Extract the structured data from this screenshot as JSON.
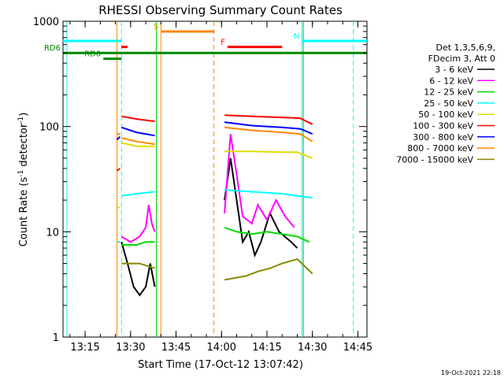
{
  "chart_data": {
    "type": "line",
    "title": "RHESSI Observing Summary Count Rates",
    "xlabel": "Start Time (17-Oct-12 13:07:42)",
    "ylabel_main": "Count Rate (s",
    "ylabel_sup1": "-1",
    "ylabel_mid": " detector",
    "ylabel_sup2": "-1",
    "ylabel_end": ")",
    "yscale": "log",
    "ylim": [
      1,
      1000
    ],
    "xlim_minutes": [
      "13:07:42",
      "14:48:00"
    ],
    "x_ticks": [
      {
        "minute": "13:15",
        "label": "13:15"
      },
      {
        "minute": "13:30",
        "label": "13:30"
      },
      {
        "minute": "13:45",
        "label": "13:45"
      },
      {
        "minute": "14:00",
        "label": "14:00"
      },
      {
        "minute": "14:15",
        "label": "14:15"
      },
      {
        "minute": "14:30",
        "label": "14:30"
      },
      {
        "minute": "14:45",
        "label": "14:45"
      }
    ],
    "y_ticks": [
      {
        "value": 1,
        "label": "1"
      },
      {
        "value": 10,
        "label": "10"
      },
      {
        "value": 100,
        "label": "100"
      },
      {
        "value": 1000,
        "label": "1000"
      }
    ],
    "legend_header": [
      "Det 1,3,5,6,9,",
      "FDecim 3, Att 0"
    ],
    "legend_position": "right",
    "series": [
      {
        "name": "3 - 6 keV",
        "color": "#000000",
        "segments": [
          [
            [
              "13:27:00",
              8
            ],
            [
              "13:29:00",
              5
            ],
            [
              "13:31:00",
              3
            ],
            [
              "13:33:00",
              2.5
            ],
            [
              "13:35:00",
              3
            ],
            [
              "13:36:30",
              5
            ],
            [
              "13:38:00",
              3
            ]
          ],
          [
            [
              "14:01:00",
              20
            ],
            [
              "14:03:00",
              50
            ],
            [
              "14:05:00",
              20
            ],
            [
              "14:07:00",
              8
            ],
            [
              "14:09:00",
              10
            ],
            [
              "14:11:00",
              6
            ],
            [
              "14:13:00",
              8
            ],
            [
              "14:16:00",
              15
            ],
            [
              "14:19:00",
              10
            ],
            [
              "14:23:00",
              8
            ],
            [
              "14:25:00",
              7
            ]
          ]
        ]
      },
      {
        "name": "6 - 12 keV",
        "color": "#ff00ff",
        "segments": [
          [
            [
              "13:27:00",
              9
            ],
            [
              "13:30:00",
              8
            ],
            [
              "13:33:00",
              9
            ],
            [
              "13:35:00",
              11
            ],
            [
              "13:36:00",
              18
            ],
            [
              "13:37:00",
              12
            ],
            [
              "13:38:00",
              10
            ]
          ],
          [
            [
              "14:01:00",
              15
            ],
            [
              "14:03:00",
              85
            ],
            [
              "14:05:00",
              35
            ],
            [
              "14:07:00",
              14
            ],
            [
              "14:10:00",
              12
            ],
            [
              "14:12:00",
              18
            ],
            [
              "14:15:00",
              13
            ],
            [
              "14:18:00",
              20
            ],
            [
              "14:21:00",
              14
            ],
            [
              "14:24:00",
              11
            ]
          ]
        ]
      },
      {
        "name": "12 - 25 keV",
        "color": "#00dd00",
        "segments": [
          [
            [
              "13:27:00",
              7.5
            ],
            [
              "13:32:00",
              7.5
            ],
            [
              "13:35:00",
              8
            ],
            [
              "13:38:00",
              8
            ]
          ],
          [
            [
              "14:01:00",
              11
            ],
            [
              "14:05:00",
              10
            ],
            [
              "14:10:00",
              9.5
            ],
            [
              "14:15:00",
              10
            ],
            [
              "14:20:00",
              9.5
            ],
            [
              "14:25:00",
              9
            ],
            [
              "14:29:00",
              8
            ]
          ]
        ]
      },
      {
        "name": "25 - 50 keV",
        "color": "#00ffff",
        "segments": [
          [
            [
              "13:25:30",
              8
            ],
            [
              "13:26:30",
              8
            ]
          ],
          [
            [
              "13:27:00",
              22
            ],
            [
              "13:32:00",
              23
            ],
            [
              "13:38:00",
              24
            ]
          ],
          [
            [
              "14:01:00",
              25
            ],
            [
              "14:10:00",
              24
            ],
            [
              "14:20:00",
              23
            ],
            [
              "14:25:00",
              22
            ],
            [
              "14:30:00",
              21
            ]
          ]
        ]
      },
      {
        "name": "50 - 100 keV",
        "color": "#dddd00",
        "segments": [
          [
            [
              "13:25:30",
              17
            ],
            [
              "13:26:30",
              17
            ]
          ],
          [
            [
              "13:27:00",
              70
            ],
            [
              "13:32:00",
              65
            ],
            [
              "13:38:00",
              65
            ]
          ],
          [
            [
              "14:01:00",
              58
            ],
            [
              "14:10:00",
              58
            ],
            [
              "14:20:00",
              57
            ],
            [
              "14:25:00",
              57
            ],
            [
              "14:30:00",
              50
            ]
          ]
        ]
      },
      {
        "name": "100 - 300 keV",
        "color": "#ff0000",
        "segments": [
          [
            [
              "13:25:30",
              38
            ],
            [
              "13:26:30",
              40
            ]
          ],
          [
            [
              "13:27:00",
              125
            ],
            [
              "13:32:00",
              118
            ],
            [
              "13:38:00",
              112
            ]
          ],
          [
            [
              "14:01:00",
              128
            ],
            [
              "14:10:00",
              125
            ],
            [
              "14:20:00",
              122
            ],
            [
              "14:26:00",
              120
            ],
            [
              "14:30:00",
              105
            ]
          ]
        ]
      },
      {
        "name": "300 - 800 keV",
        "color": "#0000ff",
        "segments": [
          [
            [
              "13:25:30",
              75
            ],
            [
              "13:26:30",
              80
            ]
          ],
          [
            [
              "13:27:00",
              98
            ],
            [
              "13:32:00",
              88
            ],
            [
              "13:38:00",
              82
            ]
          ],
          [
            [
              "14:01:00",
              110
            ],
            [
              "14:10:00",
              102
            ],
            [
              "14:20:00",
              98
            ],
            [
              "14:26:00",
              95
            ],
            [
              "14:30:00",
              85
            ]
          ]
        ]
      },
      {
        "name": "800 - 7000 keV",
        "color": "#ff8800",
        "segments": [
          [
            [
              "13:25:30",
              85
            ],
            [
              "13:26:30",
              85
            ]
          ],
          [
            [
              "13:27:00",
              78
            ],
            [
              "13:32:00",
              72
            ],
            [
              "13:38:00",
              68
            ]
          ],
          [
            [
              "14:01:00",
              98
            ],
            [
              "14:10:00",
              92
            ],
            [
              "14:20:00",
              88
            ],
            [
              "14:26:00",
              85
            ],
            [
              "14:30:00",
              72
            ]
          ]
        ]
      },
      {
        "name": "7000 - 15000 keV",
        "color": "#888800",
        "segments": [
          [
            [
              "13:27:00",
              5
            ],
            [
              "13:30:00",
              5
            ],
            [
              "13:33:00",
              5
            ],
            [
              "13:38:00",
              4.5
            ]
          ],
          [
            [
              "14:01:00",
              3.5
            ],
            [
              "14:08:00",
              3.8
            ],
            [
              "14:12:00",
              4.2
            ],
            [
              "14:16:00",
              4.5
            ],
            [
              "14:20:00",
              5
            ],
            [
              "14:25:00",
              5.5
            ],
            [
              "14:30:00",
              4
            ]
          ]
        ]
      }
    ],
    "vertical_lines": [
      {
        "time": "13:09:00",
        "color": "#00ffff",
        "style": "solid"
      },
      {
        "time": "13:25:30",
        "color": "#ff8800",
        "style": "solid"
      },
      {
        "time": "13:27:00",
        "color": "#00ffff",
        "style": "dashed"
      },
      {
        "time": "13:38:30",
        "color": "#00cc00",
        "style": "solid"
      },
      {
        "time": "13:40:00",
        "color": "#ff8800",
        "style": "solid"
      },
      {
        "time": "13:57:30",
        "color": "#ff8800",
        "style": "dashed"
      },
      {
        "time": "14:26:30",
        "color": "#00ffff",
        "style": "solid"
      },
      {
        "time": "14:27:00",
        "color": "#00cc00",
        "style": "solid"
      },
      {
        "time": "14:43:30",
        "color": "#00ffff",
        "style": "dashed"
      }
    ],
    "flag_bars": [
      {
        "label": "N",
        "color": "#00ffff",
        "ranges": [
          [
            "13:07:42",
            "13:27:00"
          ],
          [
            "14:26:30",
            "14:48:00"
          ]
        ],
        "level": 650
      },
      {
        "label": "S",
        "color": "#ff8800",
        "ranges": [
          [
            "13:40:00",
            "13:57:30"
          ]
        ],
        "level": 800
      },
      {
        "label": "F",
        "color": "#ff0000",
        "ranges": [
          [
            "13:27:00",
            "13:29:00"
          ],
          [
            "14:02:00",
            "14:20:00"
          ]
        ],
        "level": 570
      },
      {
        "label": "RD6",
        "color": "#008800",
        "ranges": [
          [
            "13:07:42",
            "14:48:00"
          ]
        ],
        "level": 500
      },
      {
        "label": "RD6",
        "color": "#008800",
        "ranges": [
          [
            "13:21:00",
            "13:27:00"
          ]
        ],
        "level": 440
      }
    ],
    "flag_labels": [
      {
        "text": "N",
        "color": "#00ffff"
      },
      {
        "text": "S",
        "color": "#ff8800"
      },
      {
        "text": "F",
        "color": "#ff0000"
      },
      {
        "text": "RD6",
        "color": "#008800"
      },
      {
        "text": "RD6",
        "color": "#008800"
      }
    ]
  },
  "footer_timestamp": "19-Oct-2021 22:18"
}
